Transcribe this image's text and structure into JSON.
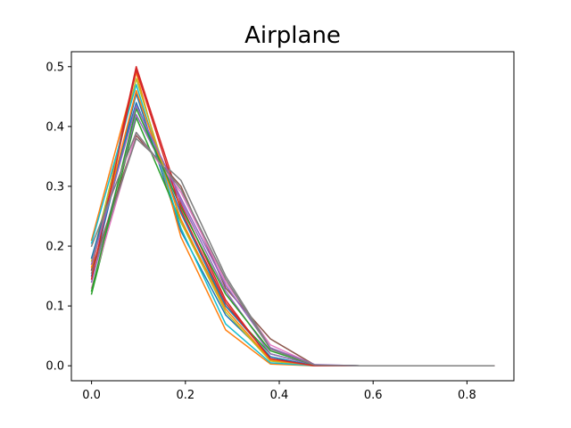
{
  "chart_data": {
    "type": "line",
    "title": "Airplane",
    "xlabel": "",
    "ylabel": "",
    "xlim": [
      -0.043,
      0.9
    ],
    "ylim": [
      -0.025,
      0.525
    ],
    "x_ticks": [
      0.0,
      0.2,
      0.4,
      0.6,
      0.8
    ],
    "x_tick_labels": [
      "0.0",
      "0.2",
      "0.4",
      "0.6",
      "0.8"
    ],
    "y_ticks": [
      0.0,
      0.1,
      0.2,
      0.3,
      0.4,
      0.5
    ],
    "y_tick_labels": [
      "0.0",
      "0.1",
      "0.2",
      "0.3",
      "0.4",
      "0.5"
    ],
    "grid": false,
    "legend": "none",
    "x": [
      0.0,
      0.0952,
      0.1905,
      0.2857,
      0.381,
      0.4762,
      0.5714,
      0.6667,
      0.7619,
      0.8571
    ],
    "series": [
      {
        "color": "#1f77b4",
        "values": [
          0.15,
          0.455,
          0.225,
          0.085,
          0.012,
          0.001,
          0.0,
          0.0,
          0.0,
          0.0
        ]
      },
      {
        "color": "#ff7f0e",
        "values": [
          0.21,
          0.49,
          0.215,
          0.06,
          0.003,
          0.0,
          0.0,
          0.0,
          0.0,
          0.0
        ]
      },
      {
        "color": "#2ca02c",
        "values": [
          0.12,
          0.415,
          0.24,
          0.1,
          0.02,
          0.001,
          0.0,
          0.0,
          0.0,
          0.0
        ]
      },
      {
        "color": "#d62728",
        "values": [
          0.16,
          0.5,
          0.27,
          0.11,
          0.01,
          0.0,
          0.0,
          0.0,
          0.0,
          0.0
        ]
      },
      {
        "color": "#9467bd",
        "values": [
          0.14,
          0.42,
          0.275,
          0.125,
          0.02,
          0.001,
          0.0,
          0.0,
          0.0,
          0.0
        ]
      },
      {
        "color": "#8c564b",
        "values": [
          0.16,
          0.385,
          0.3,
          0.13,
          0.045,
          0.001,
          0.0,
          0.0,
          0.0,
          0.0
        ]
      },
      {
        "color": "#e377c2",
        "values": [
          0.13,
          0.39,
          0.29,
          0.14,
          0.035,
          0.001,
          0.0,
          0.0,
          0.0,
          0.0
        ]
      },
      {
        "color": "#7f7f7f",
        "values": [
          0.155,
          0.38,
          0.31,
          0.15,
          0.03,
          0.001,
          0.0,
          0.0,
          0.0,
          0.0
        ]
      },
      {
        "color": "#bcbd22",
        "values": [
          0.175,
          0.48,
          0.24,
          0.09,
          0.008,
          0.0,
          0.0,
          0.0,
          0.0,
          0.0
        ]
      },
      {
        "color": "#17becf",
        "values": [
          0.205,
          0.47,
          0.23,
          0.07,
          0.005,
          0.0,
          0.0,
          0.0,
          0.0,
          0.0
        ]
      },
      {
        "color": "#1f77b4",
        "values": [
          0.18,
          0.44,
          0.255,
          0.1,
          0.015,
          0.0,
          0.0,
          0.0,
          0.0,
          0.0
        ]
      },
      {
        "color": "#ff7f0e",
        "values": [
          0.165,
          0.46,
          0.245,
          0.095,
          0.01,
          0.0,
          0.0,
          0.0,
          0.0,
          0.0
        ]
      },
      {
        "color": "#2ca02c",
        "values": [
          0.125,
          0.43,
          0.265,
          0.12,
          0.025,
          0.001,
          0.0,
          0.0,
          0.0,
          0.0
        ]
      },
      {
        "color": "#d62728",
        "values": [
          0.145,
          0.495,
          0.26,
          0.105,
          0.012,
          0.0,
          0.0,
          0.0,
          0.0,
          0.0
        ]
      },
      {
        "color": "#9467bd",
        "values": [
          0.17,
          0.435,
          0.28,
          0.135,
          0.03,
          0.002,
          0.0,
          0.0,
          0.0,
          0.0
        ]
      },
      {
        "color": "#7f7f7f",
        "values": [
          0.2,
          0.39,
          0.295,
          0.145,
          0.028,
          0.001,
          0.0,
          0.0,
          0.0,
          0.0
        ]
      }
    ]
  }
}
